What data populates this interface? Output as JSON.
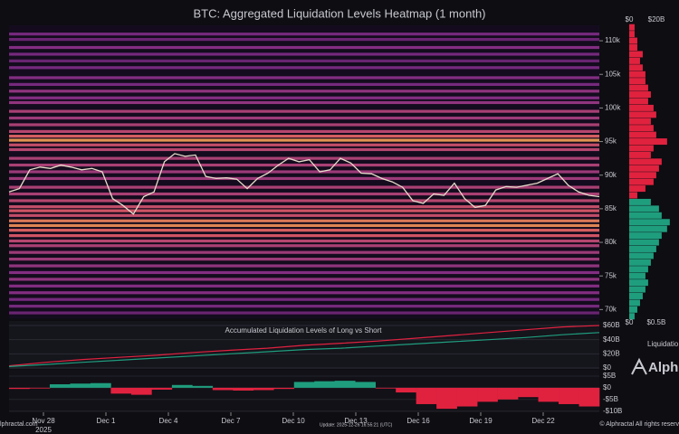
{
  "chart_data": {
    "type": "heatmap",
    "title": "BTC: Aggregated Liquidation Levels Heatmap (1 month)",
    "ylim": [
      68700,
      112300
    ],
    "yticks": [
      {
        "value": 70000,
        "label": "70k"
      },
      {
        "value": 75000,
        "label": "75k"
      },
      {
        "value": 80000,
        "label": "80k"
      },
      {
        "value": 85000,
        "label": "85k"
      },
      {
        "value": 90000,
        "label": "90k"
      },
      {
        "value": 95000,
        "label": "95k"
      },
      {
        "value": 100000,
        "label": "100k"
      },
      {
        "value": 105000,
        "label": "105k"
      },
      {
        "value": 110000,
        "label": "110k"
      }
    ],
    "x_ticks": [
      "Nov 28",
      "Dec 1",
      "Dec 4",
      "Dec 7",
      "Dec 10",
      "Dec 13",
      "Dec 16",
      "Dec 19",
      "Dec 22"
    ],
    "x_year": "2025",
    "colorscale": [
      "#2a0f3a",
      "#8a2f8f",
      "#e85d6a",
      "#ffc04d"
    ],
    "bands": [
      {
        "price": 111000,
        "intensity": 0.3
      },
      {
        "price": 110200,
        "intensity": 0.25
      },
      {
        "price": 109000,
        "intensity": 0.35
      },
      {
        "price": 108000,
        "intensity": 0.3
      },
      {
        "price": 107000,
        "intensity": 0.25
      },
      {
        "price": 106000,
        "intensity": 0.3
      },
      {
        "price": 104500,
        "intensity": 0.35
      },
      {
        "price": 103500,
        "intensity": 0.3
      },
      {
        "price": 102500,
        "intensity": 0.4
      },
      {
        "price": 101500,
        "intensity": 0.35
      },
      {
        "price": 100800,
        "intensity": 0.4
      },
      {
        "price": 99500,
        "intensity": 0.5
      },
      {
        "price": 98500,
        "intensity": 0.45
      },
      {
        "price": 97500,
        "intensity": 0.5
      },
      {
        "price": 96500,
        "intensity": 0.55
      },
      {
        "price": 95800,
        "intensity": 0.7
      },
      {
        "price": 95200,
        "intensity": 0.9
      },
      {
        "price": 94500,
        "intensity": 0.6
      },
      {
        "price": 93800,
        "intensity": 0.55
      },
      {
        "price": 92500,
        "intensity": 0.5
      },
      {
        "price": 91500,
        "intensity": 0.5
      },
      {
        "price": 90500,
        "intensity": 0.45
      },
      {
        "price": 89500,
        "intensity": 0.45
      },
      {
        "price": 88200,
        "intensity": 0.5
      },
      {
        "price": 87200,
        "intensity": 0.5
      },
      {
        "price": 86200,
        "intensity": 0.55
      },
      {
        "price": 85300,
        "intensity": 0.6
      },
      {
        "price": 84700,
        "intensity": 0.65
      },
      {
        "price": 84000,
        "intensity": 0.6
      },
      {
        "price": 83200,
        "intensity": 0.8
      },
      {
        "price": 82500,
        "intensity": 0.85
      },
      {
        "price": 81800,
        "intensity": 0.7
      },
      {
        "price": 81000,
        "intensity": 0.65
      },
      {
        "price": 80200,
        "intensity": 0.55
      },
      {
        "price": 79500,
        "intensity": 0.5
      },
      {
        "price": 78500,
        "intensity": 0.45
      },
      {
        "price": 77500,
        "intensity": 0.45
      },
      {
        "price": 76500,
        "intensity": 0.4
      },
      {
        "price": 75500,
        "intensity": 0.35
      },
      {
        "price": 74500,
        "intensity": 0.4
      },
      {
        "price": 73500,
        "intensity": 0.35
      },
      {
        "price": 72500,
        "intensity": 0.35
      },
      {
        "price": 71500,
        "intensity": 0.3
      },
      {
        "price": 70500,
        "intensity": 0.3
      },
      {
        "price": 69500,
        "intensity": 0.25
      }
    ],
    "price": {
      "color": "#e6dccb",
      "values": [
        87500,
        88000,
        90800,
        91200,
        91000,
        91500,
        91200,
        90800,
        91000,
        90500,
        86500,
        85500,
        84200,
        86800,
        87500,
        92000,
        93200,
        92800,
        93000,
        89800,
        89500,
        89600,
        89400,
        88000,
        89500,
        90300,
        91500,
        92500,
        92000,
        92300,
        90500,
        90800,
        92500,
        91800,
        90300,
        90200,
        89500,
        89000,
        88200,
        86200,
        85800,
        87200,
        87000,
        88800,
        86500,
        85200,
        85500,
        87800,
        88300,
        88200,
        88500,
        88800,
        89500,
        90200,
        88500,
        87500,
        87000,
        86800
      ]
    },
    "side": {
      "top_xlim": [
        0,
        36.7
      ],
      "top_ticks": [
        {
          "value": 0,
          "label": "$0"
        },
        {
          "value": 20,
          "label": "$20B"
        }
      ],
      "xlim": [
        0,
        0.92
      ],
      "ticks": [
        {
          "value": 0,
          "label": "$0"
        },
        {
          "value": 0.5,
          "label": "$0.5B"
        }
      ],
      "label": "Liquidatio",
      "short": {
        "color": "#e0223f",
        "prices": [
          87000,
          88000,
          89000,
          90000,
          91000,
          92000,
          93000,
          94000,
          95000,
          96000,
          97000,
          98000,
          99000,
          100000,
          101000,
          102000,
          103000,
          104000,
          105000,
          106000,
          107000,
          108000,
          109000,
          110000,
          111000,
          112000
        ],
        "values": [
          0.15,
          0.3,
          0.45,
          0.5,
          0.55,
          0.6,
          0.4,
          0.45,
          0.7,
          0.5,
          0.45,
          0.4,
          0.5,
          0.45,
          0.35,
          0.4,
          0.35,
          0.3,
          0.3,
          0.25,
          0.2,
          0.25,
          0.15,
          0.15,
          0.1,
          0.1
        ]
      },
      "long": {
        "color": "#1f9e7e",
        "prices": [
          69000,
          70000,
          71000,
          72000,
          73000,
          74000,
          75000,
          76000,
          77000,
          78000,
          79000,
          80000,
          81000,
          82000,
          83000,
          84000,
          85000,
          86000
        ],
        "values": [
          0.1,
          0.15,
          0.2,
          0.25,
          0.3,
          0.35,
          0.3,
          0.35,
          0.4,
          0.45,
          0.5,
          0.55,
          0.6,
          0.7,
          0.75,
          0.6,
          0.55,
          0.4
        ]
      }
    },
    "accumulated": {
      "title": "Accumulated Liquidation Levels of Long vs Short",
      "ylim": [
        -1.3,
        66.4
      ],
      "yticks": [
        {
          "value": 0,
          "label": "$0"
        },
        {
          "value": 20,
          "label": "$20B"
        },
        {
          "value": 40,
          "label": "$40B"
        },
        {
          "value": 60,
          "label": "$60B"
        }
      ],
      "series": [
        {
          "color": "#e0223f",
          "values": [
            3,
            8,
            12,
            15,
            18,
            22,
            25,
            28,
            32,
            35,
            38,
            42,
            46,
            50,
            54,
            58,
            60
          ]
        },
        {
          "color": "#1f9e7e",
          "values": [
            2,
            5,
            8,
            11,
            14,
            17,
            20,
            23,
            26,
            28,
            31,
            34,
            37,
            40,
            43,
            47,
            50
          ]
        }
      ]
    },
    "delta": {
      "ylim": [
        -10.5,
        7.7
      ],
      "yticks": [
        {
          "value": 5,
          "label": "$5B"
        },
        {
          "value": 0,
          "label": "$0"
        },
        {
          "value": -5,
          "label": "-$5B"
        },
        {
          "value": -10,
          "label": "-$10B"
        }
      ],
      "positive_color": "#1f9e7e",
      "negative_color": "#e0223f",
      "values": [
        -0.5,
        -0.3,
        1.5,
        1.8,
        2,
        -2.5,
        -3,
        -0.8,
        1.2,
        0.8,
        -1,
        -1.2,
        -1,
        -0.5,
        2.5,
        2.8,
        3,
        2.5,
        -0.3,
        -2,
        -7,
        -9,
        -8,
        -6,
        -5,
        -4,
        -6,
        -7,
        -8
      ]
    },
    "brand": "Alph",
    "footer_left": "lphractal.com",
    "footer_update": "Update: 2025-12-26 16:55:21 (UTC)",
    "footer_right": "© Alphractal All rights reserv"
  }
}
